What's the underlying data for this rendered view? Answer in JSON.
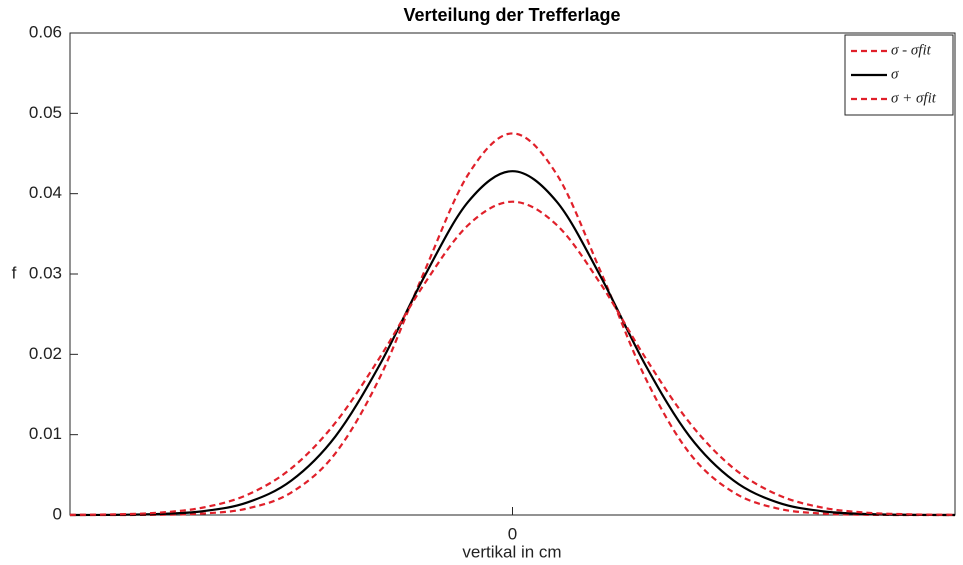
{
  "chart_data": {
    "type": "line",
    "title": "Verteilung der Trefferlage",
    "xlabel": "vertikal in cm",
    "ylabel": "f",
    "x": [
      -40,
      -36,
      -32,
      -28,
      -24,
      -20,
      -16,
      -12,
      -8,
      -4,
      0,
      4,
      8,
      12,
      16,
      20,
      24,
      28,
      32,
      36,
      40
    ],
    "series": [
      {
        "name": "σ - σfit",
        "color": "#e0202a",
        "linestyle": "dashed",
        "values": [
          0,
          0,
          3e-05,
          0.00018,
          0.0008,
          0.0028,
          0.0077,
          0.0171,
          0.0302,
          0.0424,
          0.0475,
          0.0424,
          0.0302,
          0.0171,
          0.0077,
          0.0028,
          0.0008,
          0.00018,
          3e-05,
          0,
          0
        ]
      },
      {
        "name": "σ",
        "color": "#000000",
        "linestyle": "solid",
        "values": [
          0,
          2e-05,
          0.00012,
          0.00047,
          0.00155,
          0.00428,
          0.0098,
          0.0187,
          0.0296,
          0.039,
          0.0428,
          0.039,
          0.0296,
          0.0187,
          0.0098,
          0.00428,
          0.00155,
          0.00047,
          0.00012,
          2e-05,
          0
        ]
      },
      {
        "name": "σ + σfit",
        "color": "#e0202a",
        "linestyle": "dashed",
        "values": [
          2e-05,
          8e-05,
          0.00029,
          0.00092,
          0.0025,
          0.0058,
          0.0115,
          0.0196,
          0.0287,
          0.0361,
          0.039,
          0.0361,
          0.0287,
          0.0196,
          0.0115,
          0.0058,
          0.0025,
          0.00092,
          0.00029,
          8e-05,
          2e-05
        ]
      }
    ],
    "xlim": [
      -40,
      40
    ],
    "xticks": [
      0
    ],
    "ylim": [
      0,
      0.06
    ],
    "yticks": [
      0,
      0.01,
      0.02,
      0.03,
      0.04,
      0.05,
      0.06
    ],
    "grid": false,
    "legend": "upper right"
  }
}
